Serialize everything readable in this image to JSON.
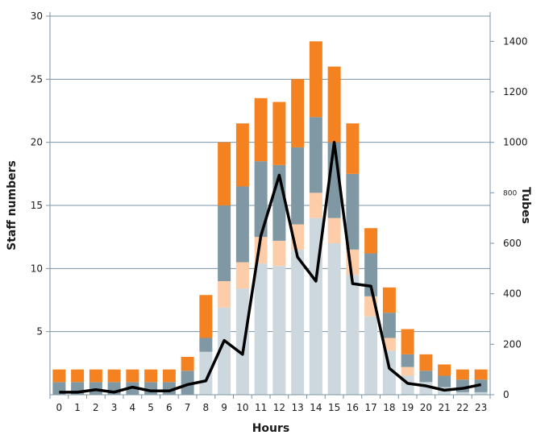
{
  "chart_data": {
    "type": "bar",
    "subtype": "stacked-bar-with-line",
    "title": "",
    "xlabel": "Hours",
    "ylabel": "Staff numbers",
    "y2label": "Tubes",
    "categories": [
      "0",
      "1",
      "2",
      "3",
      "4",
      "5",
      "6",
      "7",
      "8",
      "9",
      "10",
      "11",
      "12",
      "13",
      "14",
      "15",
      "16",
      "17",
      "18",
      "19",
      "20",
      "21",
      "22",
      "23"
    ],
    "ylim": [
      0,
      30
    ],
    "y2lim": [
      0,
      1500
    ],
    "yticks": [
      "5",
      "10",
      "15",
      "20",
      "25",
      "30"
    ],
    "y2ticks": [
      "0",
      "200",
      "400",
      "600",
      "800",
      "1000",
      "1200",
      "1400"
    ],
    "grid": "horizontal",
    "series": [
      {
        "color": "#ccd7de",
        "values": [
          0.0,
          0.0,
          0.0,
          0.0,
          0.0,
          0.0,
          0.0,
          0.0,
          3.4,
          6.9,
          8.4,
          10.4,
          10.2,
          11.5,
          14.0,
          12.0,
          9.5,
          6.2,
          3.5,
          1.5,
          1.0,
          0.6,
          0.2,
          0.2
        ]
      },
      {
        "color": "#fccda8",
        "values": [
          0.0,
          0.0,
          0.0,
          0.0,
          0.0,
          0.0,
          0.0,
          0.0,
          0.0,
          2.1,
          2.1,
          2.1,
          2.0,
          2.0,
          2.0,
          2.0,
          2.0,
          1.6,
          1.0,
          0.7,
          0.0,
          0.0,
          0.0,
          0.0
        ]
      },
      {
        "color": "#7f98a4",
        "values": [
          1.0,
          1.0,
          1.0,
          1.0,
          1.0,
          1.0,
          1.0,
          1.9,
          1.1,
          6.0,
          6.0,
          6.0,
          6.0,
          6.1,
          6.0,
          6.0,
          6.0,
          3.4,
          2.0,
          1.0,
          0.9,
          0.9,
          1.0,
          1.0
        ]
      },
      {
        "color": "#f58220",
        "values": [
          1.0,
          1.0,
          1.0,
          1.0,
          1.0,
          1.0,
          1.0,
          1.1,
          3.4,
          5.0,
          5.0,
          5.0,
          5.0,
          5.4,
          6.0,
          6.0,
          4.0,
          2.0,
          2.0,
          2.0,
          1.3,
          0.9,
          0.8,
          0.8
        ]
      }
    ],
    "line": {
      "color": "#000000",
      "axis": "right",
      "values": [
        10,
        10,
        20,
        10,
        30,
        15,
        15,
        40,
        55,
        215,
        160,
        630,
        870,
        545,
        450,
        1000,
        440,
        430,
        105,
        45,
        35,
        18,
        25,
        40
      ]
    }
  }
}
